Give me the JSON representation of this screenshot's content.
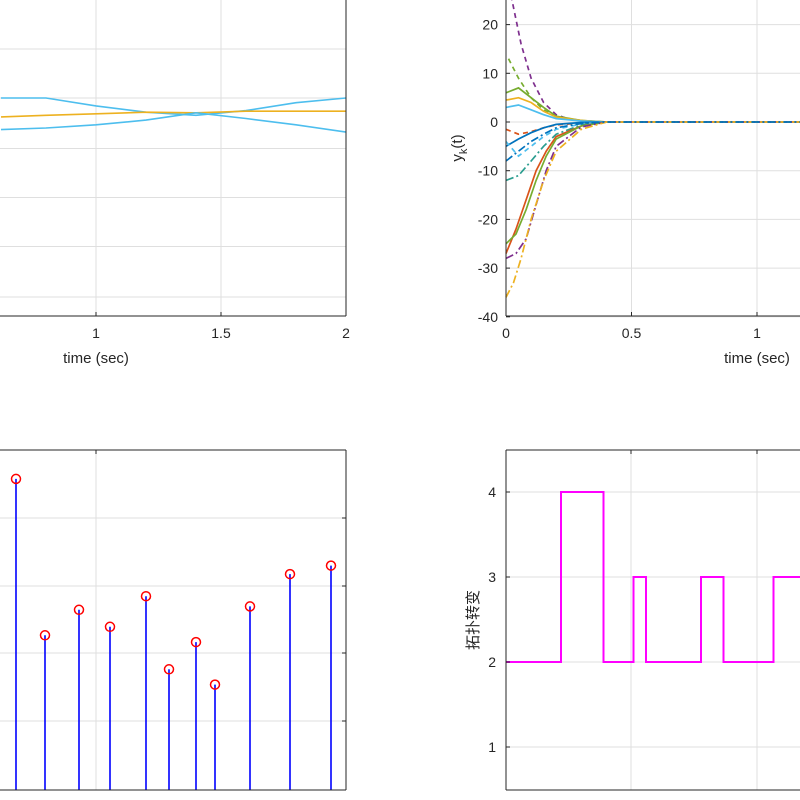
{
  "chart_data": [
    {
      "id": "panel_top_left",
      "type": "line",
      "xlabel": "time (sec)",
      "x_ticks": [
        1,
        1.5,
        2
      ],
      "x_visible_range": [
        0.62,
        2
      ],
      "y_range_norm": [
        0,
        1
      ],
      "series": [
        {
          "name": "upper-trace",
          "color": "#4DBEEE",
          "x": [
            0.62,
            0.8,
            1.0,
            1.2,
            1.4,
            1.6,
            1.8,
            2.0
          ],
          "y": [
            0.31,
            0.31,
            0.335,
            0.355,
            0.365,
            0.35,
            0.325,
            0.31
          ]
        },
        {
          "name": "middle-trace",
          "color": "#EDB120",
          "x": [
            0.62,
            0.8,
            1.0,
            1.2,
            1.4,
            1.6,
            1.8,
            2.0
          ],
          "y": [
            0.37,
            0.365,
            0.36,
            0.355,
            0.357,
            0.352,
            0.352,
            0.352
          ]
        },
        {
          "name": "lower-trace",
          "color": "#4DBEEE",
          "x": [
            0.62,
            0.8,
            1.0,
            1.2,
            1.4,
            1.6,
            1.8,
            2.0
          ],
          "y": [
            0.41,
            0.405,
            0.395,
            0.38,
            0.357,
            0.375,
            0.395,
            0.418
          ]
        }
      ]
    },
    {
      "id": "panel_top_right",
      "type": "line",
      "xlabel": "time (sec)",
      "ylabel": "y_k(t)",
      "ylabel_main": "y",
      "ylabel_sub": "k",
      "ylabel_tail": "(t)",
      "x_ticks": [
        0,
        0.5,
        1
      ],
      "y_ticks": [
        20,
        10,
        0,
        -10,
        -20,
        -30,
        -40
      ],
      "ylim": [
        -40,
        25
      ],
      "xlim": [
        0,
        1.2
      ],
      "series": [
        {
          "name": "purple-dashed-top",
          "color": "#7E2F8E",
          "dash": "5,4",
          "x": [
            0.02,
            0.06,
            0.1,
            0.15,
            0.2,
            0.25,
            0.3,
            0.4,
            1.2
          ],
          "y": [
            26,
            16,
            9,
            4,
            1.5,
            0.6,
            0.2,
            0,
            0
          ]
        },
        {
          "name": "green-dashed",
          "color": "#77AC30",
          "dash": "5,4",
          "x": [
            0.01,
            0.05,
            0.1,
            0.15,
            0.2,
            0.3,
            0.4,
            1.2
          ],
          "y": [
            13,
            9,
            5,
            2.5,
            1,
            0.3,
            0,
            0
          ]
        },
        {
          "name": "green-solid",
          "color": "#77AC30",
          "x": [
            0.0,
            0.05,
            0.1,
            0.15,
            0.2,
            0.3,
            0.4,
            1.2
          ],
          "y": [
            6,
            7,
            5,
            3,
            1.2,
            0.3,
            0,
            0
          ]
        },
        {
          "name": "yellow-solid",
          "color": "#EDB120",
          "x": [
            0.0,
            0.05,
            0.1,
            0.15,
            0.2,
            0.3,
            0.4,
            1.2
          ],
          "y": [
            4.5,
            5,
            4,
            2.2,
            1,
            0.3,
            0,
            0
          ]
        },
        {
          "name": "cyan-solid",
          "color": "#4DBEEE",
          "x": [
            0.0,
            0.05,
            0.1,
            0.15,
            0.2,
            0.3,
            0.4,
            1.2
          ],
          "y": [
            3,
            3.5,
            2.5,
            1.5,
            0.7,
            0.2,
            0,
            0
          ]
        },
        {
          "name": "red-dashed",
          "color": "#D95319",
          "dash": "5,4",
          "x": [
            0.0,
            0.05,
            0.1,
            0.15,
            0.2,
            0.3,
            0.4,
            1.2
          ],
          "y": [
            -1.5,
            -2.5,
            -2,
            -1.2,
            -0.6,
            -0.2,
            0,
            0
          ]
        },
        {
          "name": "blue-solid",
          "color": "#0072BD",
          "x": [
            0.0,
            0.05,
            0.1,
            0.15,
            0.2,
            0.3,
            0.4,
            1.2
          ],
          "y": [
            -5,
            -3.5,
            -2.2,
            -1.2,
            -0.5,
            -0.1,
            0,
            0
          ]
        },
        {
          "name": "cyan-dashed",
          "color": "#4DBEEE",
          "dash": "5,4",
          "x": [
            0.0,
            0.05,
            0.1,
            0.15,
            0.2,
            0.3,
            0.4,
            1.2
          ],
          "y": [
            -4,
            -7,
            -5,
            -3,
            -1.5,
            -0.4,
            0,
            0
          ]
        },
        {
          "name": "teal-dashdot",
          "color": "#2A9D8F",
          "dash": "8,3,2,3",
          "x": [
            0.0,
            0.05,
            0.1,
            0.15,
            0.2,
            0.3,
            0.4,
            1.2
          ],
          "y": [
            -12,
            -11,
            -8,
            -5,
            -2.5,
            -0.6,
            0,
            0
          ]
        },
        {
          "name": "red-solid",
          "color": "#D95319",
          "x": [
            0.0,
            0.04,
            0.08,
            0.12,
            0.16,
            0.2,
            0.3,
            0.4,
            1.2
          ],
          "y": [
            -27,
            -22,
            -16,
            -10,
            -6,
            -3,
            -0.8,
            0,
            0
          ]
        },
        {
          "name": "green-solid-low",
          "color": "#77AC30",
          "x": [
            0.0,
            0.04,
            0.08,
            0.12,
            0.16,
            0.2,
            0.3,
            0.4,
            1.2
          ],
          "y": [
            -25,
            -23,
            -18,
            -12,
            -7,
            -3.5,
            -0.8,
            0,
            0
          ]
        },
        {
          "name": "purple-dashdot",
          "color": "#7E2F8E",
          "dash": "8,3,2,3",
          "x": [
            0.0,
            0.04,
            0.08,
            0.12,
            0.16,
            0.2,
            0.3,
            0.4,
            1.2
          ],
          "y": [
            -28,
            -27,
            -24,
            -17,
            -10,
            -5,
            -1,
            0,
            0
          ]
        },
        {
          "name": "yellow-dashdot",
          "color": "#EDB120",
          "dash": "8,3,2,3",
          "x": [
            0.0,
            0.03,
            0.06,
            0.1,
            0.15,
            0.2,
            0.3,
            0.4,
            1.2
          ],
          "y": [
            -36,
            -33,
            -28,
            -20,
            -12,
            -6,
            -1.5,
            0,
            0
          ]
        },
        {
          "name": "navy-dashdot",
          "color": "#0072BD",
          "dash": "8,3,2,3",
          "x": [
            0.0,
            0.05,
            0.1,
            0.15,
            0.2,
            0.3,
            0.4,
            1.2
          ],
          "y": [
            -8,
            -6,
            -4,
            -2.5,
            -1.2,
            -0.3,
            0,
            0
          ]
        }
      ]
    },
    {
      "id": "panel_bottom_left",
      "type": "stem",
      "stem_color": "#0000FF",
      "marker_color": "#FF0000",
      "x_fraction": [
        0.05,
        0.13,
        0.23,
        0.32,
        0.43,
        0.49,
        0.57,
        0.62,
        0.72,
        0.84,
        0.96
      ],
      "value_fraction": [
        0.915,
        0.455,
        0.53,
        0.48,
        0.57,
        0.355,
        0.435,
        0.31,
        0.54,
        0.635,
        0.66
      ]
    },
    {
      "id": "panel_bottom_right",
      "type": "line",
      "ylabel": "拓扑转变",
      "y_ticks": [
        4,
        3,
        2,
        1
      ],
      "ylim": [
        0.5,
        4.5
      ],
      "xlim": [
        0,
        2.4
      ],
      "line_color": "#FF00FF",
      "series": [
        {
          "name": "topology",
          "x": [
            0,
            0.22,
            0.22,
            0.39,
            0.39,
            0.51,
            0.51,
            0.56,
            0.56,
            0.78,
            0.78,
            0.87,
            0.87,
            1.07,
            1.07,
            1.2
          ],
          "y": [
            2,
            2,
            4,
            4,
            2,
            2,
            3,
            3,
            2,
            2,
            3,
            3,
            2,
            2,
            3,
            3
          ]
        }
      ]
    }
  ]
}
